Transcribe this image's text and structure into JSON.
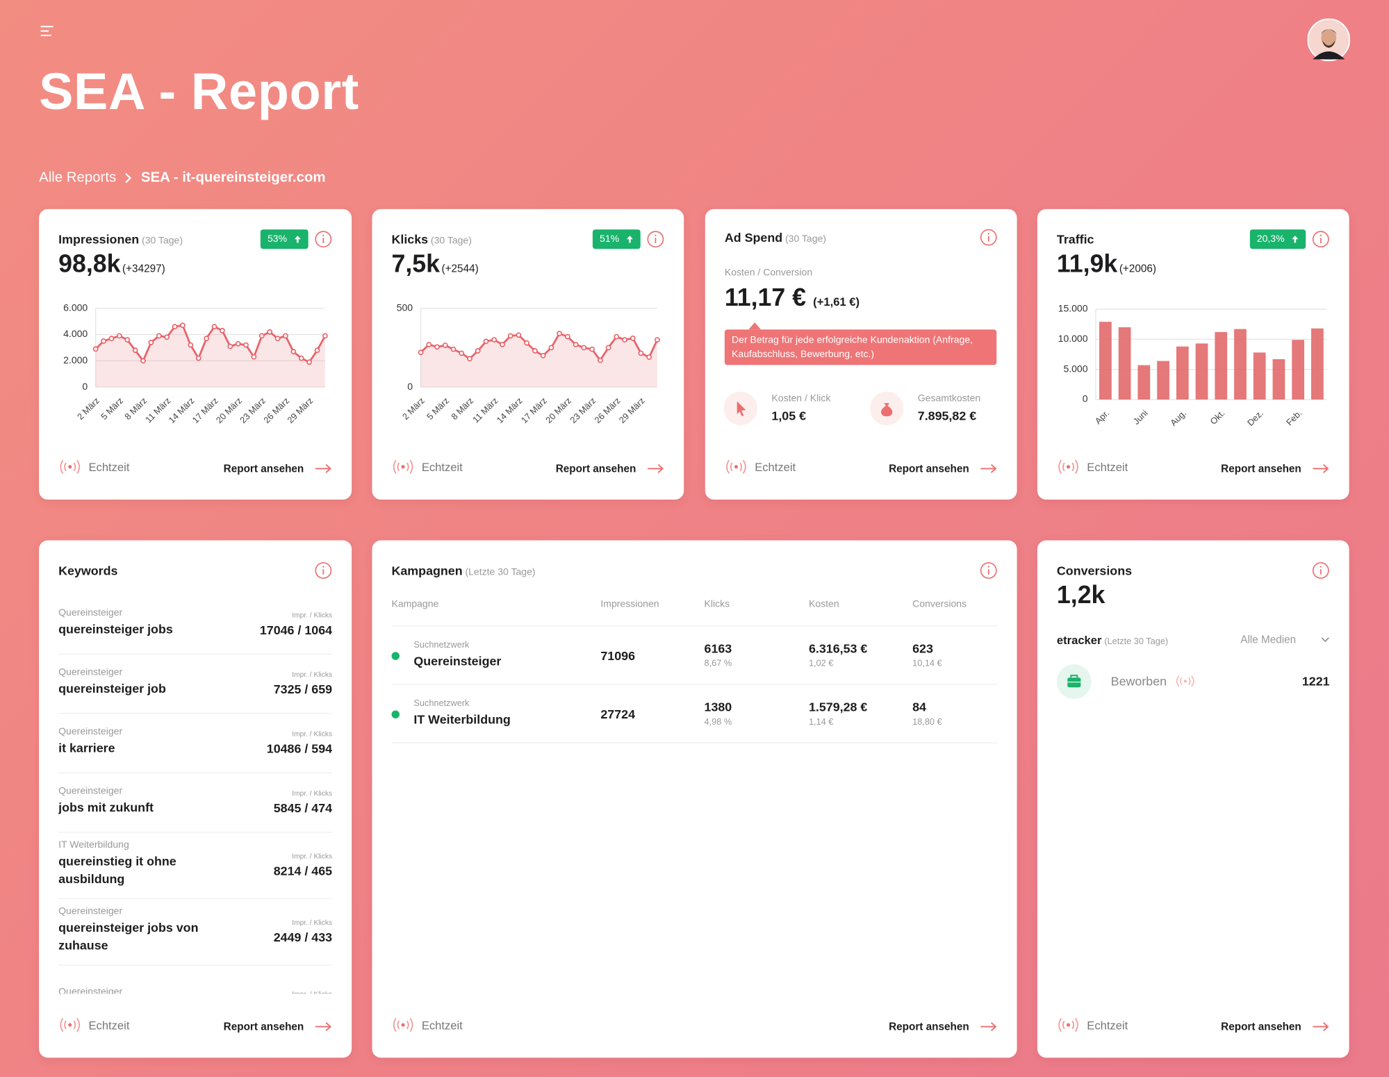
{
  "header": {
    "title": "SEA - Report"
  },
  "breadcrumb": {
    "parent": "Alle Reports",
    "current": "SEA - it-quereinsteiger.com"
  },
  "footer": {
    "live": "Echtzeit",
    "link": "Report ansehen"
  },
  "cards": {
    "impressionen": {
      "title": "Impressionen",
      "period": "(30 Tage)",
      "badge": "53%",
      "value": "98,8k",
      "delta": "(+34297)"
    },
    "klicks": {
      "title": "Klicks",
      "period": "(30 Tage)",
      "badge": "51%",
      "value": "7,5k",
      "delta": "(+2544)"
    },
    "ad_spend": {
      "title": "Ad Spend",
      "period": "(30 Tage)",
      "metric_label": "Kosten / Conversion",
      "value": "11,17 €",
      "delta": "(+1,61 €)",
      "tooltip": "Der Betrag für jede erfolgreiche Kundenaktion (Anfrage, Kaufabschluss, Bewerbung, etc.)",
      "cpc_label": "Kosten / Klick",
      "cpc": "1,05 €",
      "total_label": "Gesamtkosten",
      "total": "7.895,82 €"
    },
    "traffic": {
      "title": "Traffic",
      "badge": "20,3%",
      "value": "11,9k",
      "delta": "(+2006)"
    },
    "keywords": {
      "title": "Keywords",
      "column_label": "Impr. / Klicks",
      "rows": [
        {
          "group": "Quereinsteiger",
          "keyword": "quereinsteiger jobs",
          "value": "17046 / 1064"
        },
        {
          "group": "Quereinsteiger",
          "keyword": "quereinsteiger job",
          "value": "7325 / 659"
        },
        {
          "group": "Quereinsteiger",
          "keyword": "it karriere",
          "value": "10486 / 594"
        },
        {
          "group": "Quereinsteiger",
          "keyword": "jobs mit zukunft",
          "value": "5845 / 474"
        },
        {
          "group": "IT Weiterbildung",
          "keyword": "quereinstieg it ohne ausbildung",
          "value": "8214 / 465"
        },
        {
          "group": "Quereinsteiger",
          "keyword": "quereinsteiger jobs von zuhause",
          "value": "2449 / 433"
        },
        {
          "group": "Quereinsteiger"
        }
      ]
    },
    "kampagnen": {
      "title": "Kampagnen",
      "period": "(Letzte 30 Tage)",
      "columns": [
        "Kampagne",
        "Impressionen",
        "Klicks",
        "Kosten",
        "Conversions"
      ],
      "rows": [
        {
          "network": "Suchnetzwerk",
          "name": "Quereinsteiger",
          "impressions": "71096",
          "clicks": "6163",
          "click_rate": "8,67 %",
          "cost": "6.316,53 €",
          "cost_per_click": "1,02 €",
          "conversions": "623",
          "cost_per_conversion": "10,14 €"
        },
        {
          "network": "Suchnetzwerk",
          "name": "IT Weiterbildung",
          "impressions": "27724",
          "clicks": "1380",
          "click_rate": "4,98 %",
          "cost": "1.579,28 €",
          "cost_per_click": "1,14 €",
          "conversions": "84",
          "cost_per_conversion": "18,80 €"
        }
      ]
    },
    "conversions": {
      "title": "Conversions",
      "value": "1,2k",
      "source": "etracker",
      "period": "(Letzte 30 Tage)",
      "filter": "Alle Medien",
      "goal": "Beworben",
      "goal_value": "1221"
    }
  },
  "chart_data": [
    {
      "type": "line",
      "color": "#e8646b",
      "categories": [
        "2 März",
        null,
        null,
        "5 März",
        null,
        null,
        "8 März",
        null,
        null,
        "11 März",
        null,
        null,
        "14 März",
        null,
        null,
        "17 März",
        null,
        null,
        "20 März",
        null,
        null,
        "23 März",
        null,
        null,
        "26 März",
        null,
        null,
        "29 März",
        null,
        null
      ],
      "values": [
        2900,
        3500,
        3700,
        3900,
        3600,
        2800,
        2000,
        3400,
        3900,
        3800,
        4600,
        4700,
        3200,
        2200,
        3700,
        4600,
        4300,
        3100,
        3300,
        3200,
        2300,
        3900,
        4200,
        3700,
        3900,
        2700,
        2200,
        1900,
        2800,
        3900
      ],
      "ylim": [
        0,
        6000
      ],
      "yticks": [
        0,
        {
          "value": 2000,
          "label": "2.000"
        },
        {
          "value": 4000,
          "label": "4.000"
        },
        {
          "value": 6000,
          "label": "6.000"
        }
      ],
      "grid": true
    },
    {
      "type": "line",
      "color": "#e8646b",
      "categories": [
        "2 März",
        null,
        null,
        "5 März",
        null,
        null,
        "8 März",
        null,
        null,
        "11 März",
        null,
        null,
        "14 März",
        null,
        null,
        "17 März",
        null,
        null,
        "20 März",
        null,
        null,
        "23 März",
        null,
        null,
        "26 März",
        null,
        null,
        "29 März",
        null,
        null
      ],
      "values": [
        220,
        270,
        255,
        265,
        240,
        215,
        180,
        230,
        290,
        300,
        270,
        325,
        330,
        280,
        230,
        200,
        250,
        340,
        320,
        270,
        250,
        240,
        170,
        250,
        320,
        300,
        310,
        215,
        190,
        300
      ],
      "ylim": [
        0,
        500
      ],
      "yticks": [
        0,
        500
      ],
      "grid": true
    },
    {
      "type": "bar",
      "color": "#e36c6e",
      "categories": [
        "Apr.",
        null,
        "Juni",
        null,
        "Aug.",
        null,
        "Okt.",
        null,
        "Dez.",
        null,
        "Feb.",
        null
      ],
      "values": [
        12900,
        12000,
        5700,
        6400,
        8800,
        9300,
        11200,
        11700,
        7800,
        6700,
        9900,
        11800
      ],
      "ylim": [
        0,
        15000
      ],
      "yticks": [
        0,
        {
          "value": 5000,
          "label": "5.000"
        },
        {
          "value": 10000,
          "label": "10.000"
        },
        {
          "value": 15000,
          "label": "15.000"
        }
      ],
      "grid": true
    }
  ]
}
